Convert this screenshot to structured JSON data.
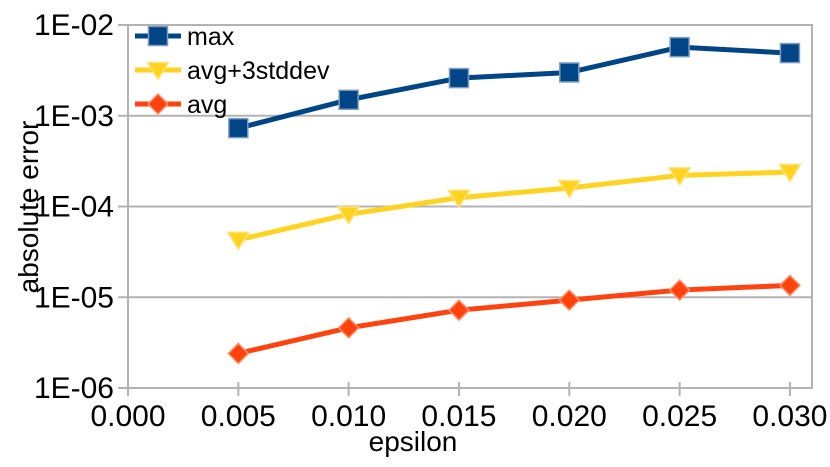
{
  "chart_data": {
    "type": "line",
    "title": "",
    "xlabel": "epsilon",
    "ylabel": "absolute error",
    "x": [
      0.005,
      0.01,
      0.015,
      0.02,
      0.025,
      0.03
    ],
    "series": [
      {
        "name": "max",
        "marker": "square",
        "color": "#004586",
        "edge_color": "#7e9cc1",
        "values": [
          0.00073,
          0.0015,
          0.0026,
          0.003,
          0.0057,
          0.0049
        ]
      },
      {
        "name": "avg+3stddev",
        "marker": "triangle-down",
        "color": "#ffd320",
        "edge_color": "#ffe373",
        "values": [
          4.3e-05,
          8.2e-05,
          0.000125,
          0.00016,
          0.00022,
          0.00024
        ]
      },
      {
        "name": "avg",
        "marker": "diamond",
        "color": "#ff420e",
        "edge_color": "#ff8f66",
        "values": [
          2.4e-06,
          4.6e-06,
          7.2e-06,
          9.3e-06,
          1.2e-05,
          1.35e-05
        ]
      }
    ],
    "x_axis": {
      "label": "epsilon",
      "scale": "linear",
      "min": 0,
      "max": 0.031,
      "tick_values": [
        0,
        0.005,
        0.01,
        0.015,
        0.02,
        0.025,
        0.03
      ],
      "tick_labels": [
        "0.000",
        "0.005",
        "0.010",
        "0.015",
        "0.020",
        "0.025",
        "0.030"
      ]
    },
    "y_axis": {
      "label": "absolute error",
      "scale": "log",
      "min": 1e-06,
      "max": 0.01,
      "tick_values": [
        0.01,
        0.001,
        0.0001,
        1e-05,
        1e-06
      ],
      "tick_labels": [
        "1E-02",
        "1E-03",
        "1E-04",
        "1E-05",
        "1E-06"
      ]
    },
    "grid": {
      "horizontal": true,
      "vertical": false,
      "color": "#b3b3b3"
    },
    "legend": {
      "position": "top-left-inside",
      "entries": [
        "max",
        "avg+3stddev",
        "avg"
      ]
    },
    "background": "#ffffff",
    "text_color": "#000000"
  }
}
